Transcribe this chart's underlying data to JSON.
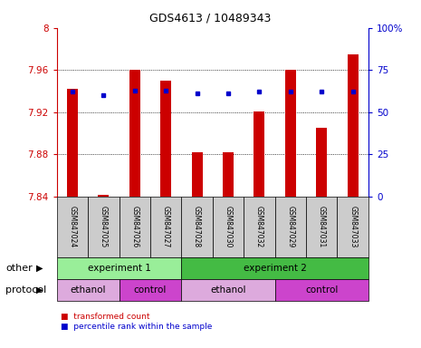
{
  "title": "GDS4613 / 10489343",
  "samples": [
    "GSM847024",
    "GSM847025",
    "GSM847026",
    "GSM847027",
    "GSM847028",
    "GSM847030",
    "GSM847032",
    "GSM847029",
    "GSM847031",
    "GSM847033"
  ],
  "bar_values": [
    7.942,
    7.842,
    7.96,
    7.95,
    7.882,
    7.882,
    7.921,
    7.96,
    7.905,
    7.975
  ],
  "bar_base": 7.84,
  "blue_dot_pct": [
    62,
    60,
    63,
    63,
    61,
    61,
    62,
    62,
    62,
    62
  ],
  "ylim_left": [
    7.84,
    8.0
  ],
  "ylim_right": [
    0,
    100
  ],
  "yticks_left": [
    7.84,
    7.88,
    7.92,
    7.96,
    8.0
  ],
  "yticks_right": [
    0,
    25,
    50,
    75,
    100
  ],
  "ytick_labels_left": [
    "7.84",
    "7.88",
    "7.92",
    "7.96",
    "8"
  ],
  "ytick_labels_right": [
    "0",
    "25",
    "50",
    "75",
    "100%"
  ],
  "bar_color": "#cc0000",
  "dot_color": "#0000cc",
  "bar_width": 0.35,
  "left_axis_color": "#cc0000",
  "right_axis_color": "#0000cc",
  "experiment_groups": [
    {
      "label": "experiment 1",
      "start": 0,
      "end": 4,
      "color": "#99ee99"
    },
    {
      "label": "experiment 2",
      "start": 4,
      "end": 10,
      "color": "#44bb44"
    }
  ],
  "protocol_groups": [
    {
      "label": "ethanol",
      "start": 0,
      "end": 2,
      "color": "#ddaadd"
    },
    {
      "label": "control",
      "start": 2,
      "end": 4,
      "color": "#cc44cc"
    },
    {
      "label": "ethanol",
      "start": 4,
      "end": 7,
      "color": "#ddaadd"
    },
    {
      "label": "control",
      "start": 7,
      "end": 10,
      "color": "#cc44cc"
    }
  ],
  "legend_items": [
    {
      "label": "transformed count",
      "color": "#cc0000"
    },
    {
      "label": "percentile rank within the sample",
      "color": "#0000cc"
    }
  ],
  "other_label": "other",
  "protocol_label": "protocol",
  "sample_row_bg": "#cccccc",
  "grid_yticks": [
    7.88,
    7.92,
    7.96
  ]
}
